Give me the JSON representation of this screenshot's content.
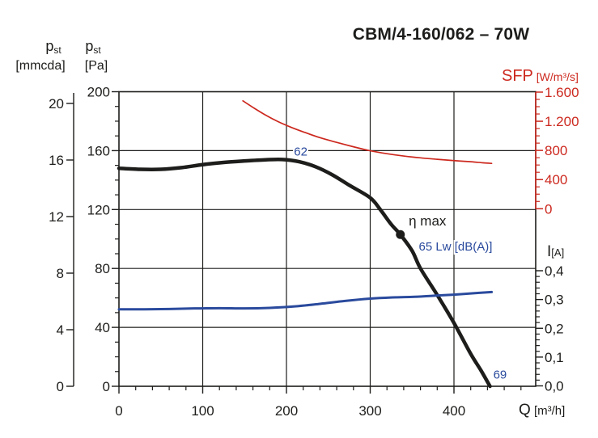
{
  "title": "CBM/4-160/062 – 70W",
  "colors": {
    "black": "#1d1d1b",
    "red": "#cc281e",
    "blue": "#2a4a9d",
    "grid": "#1d1d1b"
  },
  "axis_headers": {
    "left_outer_symbol": "p",
    "left_outer_sub": "st",
    "left_outer_unit": "[mmcda]",
    "left_inner_symbol": "p",
    "left_inner_sub": "st",
    "left_inner_unit": "[Pa]",
    "right_top_symbol": "SFP",
    "right_top_unit": "[W/m³/s]",
    "right_bottom_symbol": "I",
    "right_bottom_unit": "[A]",
    "x_symbol": "Q",
    "x_unit": "[m³/h]"
  },
  "ticks": {
    "mmcda": [
      {
        "v": 0,
        "t": "0"
      },
      {
        "v": 4,
        "t": "4"
      },
      {
        "v": 8,
        "t": "8"
      },
      {
        "v": 12,
        "t": "12"
      },
      {
        "v": 16,
        "t": "16"
      },
      {
        "v": 20,
        "t": "20"
      }
    ],
    "pa": [
      {
        "v": 0,
        "t": "0"
      },
      {
        "v": 40,
        "t": "40"
      },
      {
        "v": 80,
        "t": "80"
      },
      {
        "v": 120,
        "t": "120"
      },
      {
        "v": 160,
        "t": "160"
      },
      {
        "v": 200,
        "t": "200"
      }
    ],
    "sfp": [
      {
        "v": 0,
        "t": "0"
      },
      {
        "v": 400,
        "t": "400"
      },
      {
        "v": 800,
        "t": "800"
      },
      {
        "v": 1200,
        "t": "1.200"
      },
      {
        "v": 1600,
        "t": "1.600"
      }
    ],
    "i": [
      {
        "v": 0.0,
        "t": "0,0"
      },
      {
        "v": 0.1,
        "t": "0,1"
      },
      {
        "v": 0.2,
        "t": "0,2"
      },
      {
        "v": 0.3,
        "t": "0,3"
      },
      {
        "v": 0.4,
        "t": "0,4"
      }
    ],
    "x": [
      {
        "v": 0,
        "t": "0"
      },
      {
        "v": 100,
        "t": "100"
      },
      {
        "v": 200,
        "t": "200"
      },
      {
        "v": 300,
        "t": "300"
      },
      {
        "v": 400,
        "t": "400"
      }
    ]
  },
  "chart_data": {
    "type": "line",
    "title": "CBM/4-160/062 – 70W",
    "xlabel": "Q [m³/h]",
    "x_range": [
      0,
      500
    ],
    "x_ticks": [
      0,
      100,
      200,
      300,
      400
    ],
    "grid": true,
    "axes": {
      "pa": {
        "label": "p_st [Pa]",
        "range": [
          0,
          200
        ],
        "side": "left"
      },
      "mmcda": {
        "label": "p_st [mmcda]",
        "range": [
          0,
          20
        ],
        "side": "left"
      },
      "sfp": {
        "label": "SFP [W/m³/s]",
        "range": [
          0,
          1600
        ],
        "side": "right"
      },
      "i": {
        "label": "I [A]",
        "range": [
          0,
          0.4
        ],
        "side": "right"
      }
    },
    "series": [
      {
        "name": "static-pressure",
        "unit": "Pa",
        "axis": "pa",
        "color": "#1d1d1b",
        "width": 4.5,
        "points": [
          [
            0,
            148
          ],
          [
            25,
            147.3
          ],
          [
            50,
            147.3
          ],
          [
            75,
            148.5
          ],
          [
            100,
            150.5
          ],
          [
            125,
            152
          ],
          [
            150,
            153
          ],
          [
            175,
            153.8
          ],
          [
            195,
            154
          ],
          [
            215,
            152.5
          ],
          [
            235,
            149
          ],
          [
            255,
            143.5
          ],
          [
            275,
            136.5
          ],
          [
            300,
            128
          ],
          [
            312,
            120
          ],
          [
            325,
            110
          ],
          [
            336,
            103
          ],
          [
            350,
            92
          ],
          [
            360,
            80
          ],
          [
            380,
            62
          ],
          [
            400,
            43
          ],
          [
            420,
            22
          ],
          [
            432,
            11
          ],
          [
            443,
            0
          ]
        ]
      },
      {
        "name": "specific-fan-power",
        "unit": "W/m³/s",
        "axis": "sfp",
        "color": "#cc281e",
        "width": 1.7,
        "points": [
          [
            148,
            1480
          ],
          [
            160,
            1390
          ],
          [
            175,
            1285
          ],
          [
            190,
            1195
          ],
          [
            205,
            1120
          ],
          [
            220,
            1055
          ],
          [
            240,
            975
          ],
          [
            260,
            910
          ],
          [
            280,
            850
          ],
          [
            300,
            795
          ],
          [
            320,
            755
          ],
          [
            340,
            723
          ],
          [
            360,
            698
          ],
          [
            380,
            678
          ],
          [
            400,
            660
          ],
          [
            420,
            645
          ],
          [
            435,
            630
          ],
          [
            445,
            622
          ]
        ]
      },
      {
        "name": "current",
        "unit": "A",
        "axis": "i",
        "color": "#2a4a9d",
        "width": 3,
        "points": [
          [
            0,
            0.266
          ],
          [
            30,
            0.266
          ],
          [
            60,
            0.267
          ],
          [
            90,
            0.269
          ],
          [
            120,
            0.27
          ],
          [
            150,
            0.269
          ],
          [
            180,
            0.271
          ],
          [
            210,
            0.276
          ],
          [
            240,
            0.285
          ],
          [
            270,
            0.295
          ],
          [
            300,
            0.303
          ],
          [
            325,
            0.307
          ],
          [
            350,
            0.309
          ],
          [
            375,
            0.313
          ],
          [
            400,
            0.317
          ],
          [
            425,
            0.322
          ],
          [
            445,
            0.326
          ]
        ]
      }
    ],
    "marker": {
      "name": "eta-max",
      "q": 336,
      "pa": 103,
      "radius": 5.5
    },
    "annotations": [
      {
        "text": "62",
        "q": 217,
        "pa": 159.5,
        "color": "blue",
        "size": 15,
        "anchor": "middle"
      },
      {
        "text": "η max",
        "q": 346,
        "pa": 112,
        "color": "black",
        "size": 17,
        "anchor": "start"
      },
      {
        "text": "65 Lw [dB(A)]",
        "q": 358,
        "pa": 95,
        "color": "blue",
        "size": 15,
        "anchor": "start"
      },
      {
        "text": "69",
        "q": 455,
        "pa": 8,
        "color": "blue",
        "size": 15,
        "anchor": "middle"
      }
    ]
  }
}
